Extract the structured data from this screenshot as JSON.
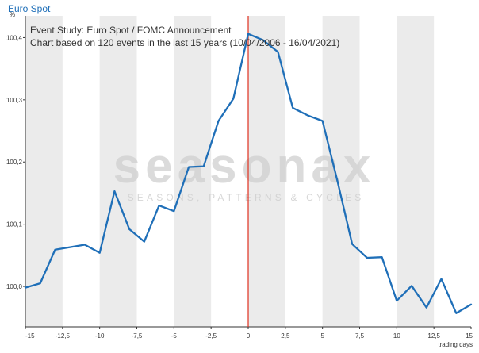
{
  "page": {
    "title": "Euro Spot"
  },
  "colors": {
    "line": "#1f6fb8",
    "event_line": "#e0301e",
    "band": "#ebebeb",
    "axis": "#333333",
    "watermark": "#cfcfcf"
  },
  "watermark": {
    "brand": "seasonax",
    "tagline": "SEASONS, PATTERNS & CYCLES"
  },
  "chart_data": {
    "type": "line",
    "title": "Event Study: Euro Spot / FOMC Announcement",
    "subtitle": "Chart based on 120 events in the last 15 years (10/04/2006 - 16/04/2021)",
    "ylabel": "%",
    "xlabel": "trading days",
    "xlim": [
      -15,
      15
    ],
    "ylim": [
      99.935,
      100.435
    ],
    "x_ticks": [
      {
        "v": -15,
        "label": "-15"
      },
      {
        "v": -12.5,
        "label": "-12,5"
      },
      {
        "v": -10,
        "label": "-10"
      },
      {
        "v": -7.5,
        "label": "-7,5"
      },
      {
        "v": -5,
        "label": "-5"
      },
      {
        "v": -2.5,
        "label": "-2,5"
      },
      {
        "v": 0,
        "label": "0"
      },
      {
        "v": 2.5,
        "label": "2,5"
      },
      {
        "v": 5,
        "label": "5"
      },
      {
        "v": 7.5,
        "label": "7,5"
      },
      {
        "v": 10,
        "label": "10"
      },
      {
        "v": 12.5,
        "label": "12,5"
      },
      {
        "v": 15,
        "label": "15"
      }
    ],
    "y_ticks": [
      {
        "v": 100.0,
        "label": "100,0"
      },
      {
        "v": 100.1,
        "label": "100,1"
      },
      {
        "v": 100.2,
        "label": "100,2"
      },
      {
        "v": 100.3,
        "label": "100,3"
      },
      {
        "v": 100.4,
        "label": "100,4"
      }
    ],
    "event_marker_x": 0,
    "series": [
      {
        "x": [
          -15,
          -14,
          -13,
          -12,
          -11,
          -10,
          -9,
          -8,
          -7,
          -6,
          -5,
          -4,
          -3,
          -2,
          -1,
          0,
          1,
          2,
          3,
          4,
          5,
          6,
          7,
          8,
          9,
          10,
          11,
          12,
          13,
          14,
          15
        ],
        "values": [
          99.998,
          100.005,
          100.059,
          100.063,
          100.067,
          100.054,
          100.153,
          100.092,
          100.072,
          100.13,
          100.121,
          100.192,
          100.193,
          100.266,
          100.302,
          100.406,
          100.396,
          100.377,
          100.287,
          100.275,
          100.266,
          100.17,
          100.068,
          100.046,
          100.047,
          99.977,
          100.001,
          99.966,
          100.012,
          99.957,
          99.971
        ]
      }
    ]
  }
}
